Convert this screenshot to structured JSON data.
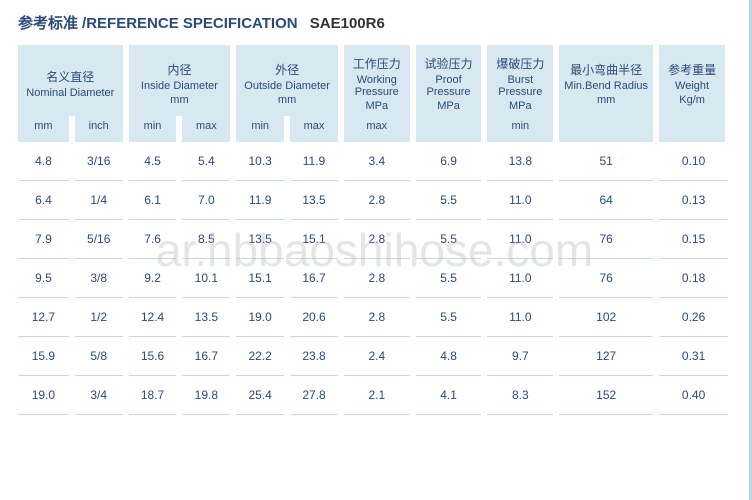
{
  "title": {
    "cn": "参考标准",
    "sep": "/",
    "en": "REFERENCE SPECIFICATION",
    "code": "SAE100R6"
  },
  "watermark": "ar.hbbaoshihose.com",
  "headers": {
    "nominal": {
      "cn": "名义直径",
      "en": "Nominal Diameter",
      "sub_mm": "mm",
      "sub_inch": "inch"
    },
    "inside": {
      "cn": "内径",
      "en": "Inside Diameter",
      "unit": "mm",
      "sub_min": "min",
      "sub_max": "max"
    },
    "outside": {
      "cn": "外径",
      "en": "Outside Diameter",
      "unit": "mm",
      "sub_min": "min",
      "sub_max": "max"
    },
    "working": {
      "cn": "工作压力",
      "en": "Working Pressure",
      "unit": "MPa",
      "sub": "max"
    },
    "proof": {
      "cn": "试验压力",
      "en": "Proof Pressure",
      "unit": "MPa"
    },
    "burst": {
      "cn": "爆破压力",
      "en": "Burst Pressure",
      "unit": "MPa",
      "sub": "min"
    },
    "bend": {
      "cn": "最小弯曲半径",
      "en": "Min.Bend Radius",
      "unit": "mm"
    },
    "weight": {
      "cn": "参考重量",
      "en": "Weight",
      "unit": "Kg/m"
    }
  },
  "rows": [
    {
      "mm": "4.8",
      "inch": "3/16",
      "id_min": "4.5",
      "id_max": "5.4",
      "od_min": "10.3",
      "od_max": "11.9",
      "wp": "3.4",
      "pp": "6.9",
      "bp": "13.8",
      "bend": "51",
      "wt": "0.10"
    },
    {
      "mm": "6.4",
      "inch": "1/4",
      "id_min": "6.1",
      "id_max": "7.0",
      "od_min": "11.9",
      "od_max": "13.5",
      "wp": "2.8",
      "pp": "5.5",
      "bp": "11.0",
      "bend": "64",
      "wt": "0.13"
    },
    {
      "mm": "7.9",
      "inch": "5/16",
      "id_min": "7.6",
      "id_max": "8.5",
      "od_min": "13.5",
      "od_max": "15.1",
      "wp": "2.8",
      "pp": "5.5",
      "bp": "11.0",
      "bend": "76",
      "wt": "0.15"
    },
    {
      "mm": "9.5",
      "inch": "3/8",
      "id_min": "9.2",
      "id_max": "10.1",
      "od_min": "15.1",
      "od_max": "16.7",
      "wp": "2.8",
      "pp": "5.5",
      "bp": "11.0",
      "bend": "76",
      "wt": "0.18"
    },
    {
      "mm": "12.7",
      "inch": "1/2",
      "id_min": "12.4",
      "id_max": "13.5",
      "od_min": "19.0",
      "od_max": "20.6",
      "wp": "2.8",
      "pp": "5.5",
      "bp": "11.0",
      "bend": "102",
      "wt": "0.26"
    },
    {
      "mm": "15.9",
      "inch": "5/8",
      "id_min": "15.6",
      "id_max": "16.7",
      "od_min": "22.2",
      "od_max": "23.8",
      "wp": "2.4",
      "pp": "4.8",
      "bp": "9.7",
      "bend": "127",
      "wt": "0.31"
    },
    {
      "mm": "19.0",
      "inch": "3/4",
      "id_min": "18.7",
      "id_max": "19.8",
      "od_min": "25.4",
      "od_max": "27.8",
      "wp": "2.1",
      "pp": "4.1",
      "bp": "8.3",
      "bend": "152",
      "wt": "0.40"
    }
  ],
  "colors": {
    "header_bg": "#d8e8f0",
    "text": "#2a4a7a",
    "row_border": "#c8d8e0",
    "watermark": "rgba(180,180,180,0.35)"
  }
}
